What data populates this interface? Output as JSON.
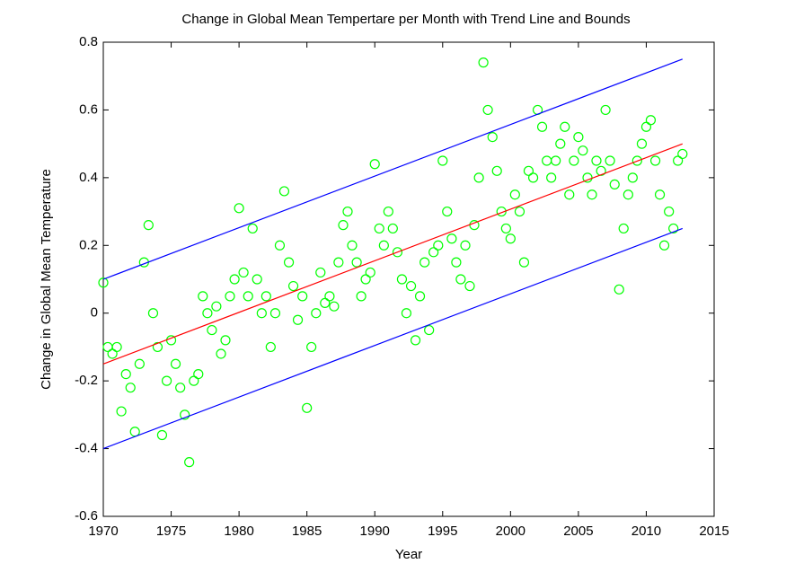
{
  "chart_data": {
    "type": "scatter",
    "title": "Change in Global Mean Tempertare per Month with Trend Line and Bounds",
    "x_label": "Year",
    "y_label": "Change in Global Mean Temperature",
    "xlim": [
      1970,
      2015
    ],
    "xticks": [
      1970,
      1975,
      1980,
      1985,
      1990,
      1995,
      2000,
      2005,
      2010,
      2015
    ],
    "ylim": [
      -0.6,
      0.8
    ],
    "yticks": [
      -0.6,
      -0.4,
      -0.2,
      0,
      0.2,
      0.4,
      0.6,
      0.8
    ],
    "grid": false,
    "series": [
      {
        "type": "scatter",
        "color": "#00ff00",
        "x": [
          1970,
          1970.33,
          1970.67,
          1971,
          1971.33,
          1971.67,
          1972,
          1972.33,
          1972.67,
          1973,
          1973.33,
          1973.67,
          1974,
          1974.33,
          1974.67,
          1975,
          1975.33,
          1975.67,
          1976,
          1976.33,
          1976.67,
          1977,
          1977.33,
          1977.67,
          1978,
          1978.33,
          1978.67,
          1979,
          1979.33,
          1979.67,
          1980,
          1980.33,
          1980.67,
          1981,
          1981.33,
          1981.67,
          1982,
          1982.33,
          1982.67,
          1983,
          1983.33,
          1983.67,
          1984,
          1984.33,
          1984.67,
          1985,
          1985.33,
          1985.67,
          1986,
          1986.33,
          1986.67,
          1987,
          1987.33,
          1987.67,
          1988,
          1988.33,
          1988.67,
          1989,
          1989.33,
          1989.67,
          1990,
          1990.33,
          1990.67,
          1991,
          1991.33,
          1991.67,
          1992,
          1992.33,
          1992.67,
          1993,
          1993.33,
          1993.67,
          1994,
          1994.33,
          1994.67,
          1995,
          1995.33,
          1995.67,
          1996,
          1996.33,
          1996.67,
          1997,
          1997.33,
          1997.67,
          1998,
          1998.33,
          1998.67,
          1999,
          1999.33,
          1999.67,
          2000,
          2000.33,
          2000.67,
          2001,
          2001.33,
          2001.67,
          2002,
          2002.33,
          2002.67,
          2003,
          2003.33,
          2003.67,
          2004,
          2004.33,
          2004.67,
          2005,
          2005.33,
          2005.67,
          2006,
          2006.33,
          2006.67,
          2007,
          2007.33,
          2007.67,
          2008,
          2008.33,
          2008.67,
          2009,
          2009.33,
          2009.67,
          2010,
          2010.33,
          2010.67,
          2011,
          2011.33,
          2011.67,
          2012,
          2012.33,
          2012.67
        ],
        "values": [
          0.09,
          -0.1,
          -0.12,
          -0.1,
          -0.29,
          -0.18,
          -0.22,
          -0.35,
          -0.15,
          0.15,
          0.26,
          0.0,
          -0.1,
          -0.36,
          -0.2,
          -0.08,
          -0.15,
          -0.22,
          -0.3,
          -0.44,
          -0.2,
          -0.18,
          0.05,
          0.0,
          -0.05,
          0.02,
          -0.12,
          -0.08,
          0.05,
          0.1,
          0.31,
          0.12,
          0.05,
          0.25,
          0.1,
          0.0,
          0.05,
          -0.1,
          0.0,
          0.2,
          0.36,
          0.15,
          0.08,
          -0.02,
          0.05,
          -0.28,
          -0.1,
          0.0,
          0.12,
          0.03,
          0.05,
          0.02,
          0.15,
          0.26,
          0.3,
          0.2,
          0.15,
          0.05,
          0.1,
          0.12,
          0.44,
          0.25,
          0.2,
          0.3,
          0.25,
          0.18,
          0.1,
          0.0,
          0.08,
          -0.08,
          0.05,
          0.15,
          -0.05,
          0.18,
          0.2,
          0.45,
          0.3,
          0.22,
          0.15,
          0.1,
          0.2,
          0.08,
          0.26,
          0.4,
          0.74,
          0.6,
          0.52,
          0.42,
          0.3,
          0.25,
          0.22,
          0.35,
          0.3,
          0.15,
          0.42,
          0.4,
          0.6,
          0.55,
          0.45,
          0.4,
          0.45,
          0.5,
          0.55,
          0.35,
          0.45,
          0.52,
          0.48,
          0.4,
          0.35,
          0.45,
          0.42,
          0.6,
          0.45,
          0.38,
          0.07,
          0.25,
          0.35,
          0.4,
          0.45,
          0.5,
          0.55,
          0.57,
          0.45,
          0.35,
          0.2,
          0.3,
          0.25,
          0.45,
          0.47
        ]
      },
      {
        "type": "line",
        "color": "#0000ff",
        "x": [
          1970,
          2012.67
        ],
        "values": [
          0.1,
          0.75
        ]
      },
      {
        "type": "line",
        "color": "#ff0000",
        "x": [
          1970,
          2012.67
        ],
        "values": [
          -0.15,
          0.5
        ]
      },
      {
        "type": "line",
        "color": "#0000ff",
        "x": [
          1970,
          2012.67
        ],
        "values": [
          -0.4,
          0.25
        ]
      }
    ]
  }
}
